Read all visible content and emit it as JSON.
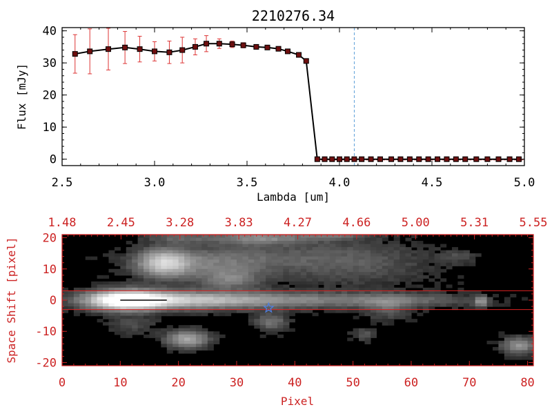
{
  "colors": {
    "axis_black": "#000000",
    "axis_red": "#cc2222",
    "errorbar_red": "#dd3333",
    "marker_fill": "#6e0f0f",
    "vline_blue": "#5a9fd8",
    "star_blue": "#4f7fe0",
    "overlay_red": "#dd2222"
  },
  "chart_data": [
    {
      "type": "line",
      "title": "2210276.34",
      "xlabel": "Lambda [um]",
      "ylabel": "Flux [mJy]",
      "xlim": [
        2.5,
        5.0
      ],
      "ylim": [
        -2,
        41
      ],
      "x_ticks": [
        "2.5",
        "3.0",
        "3.5",
        "4.0",
        "4.5",
        "5.0"
      ],
      "y_ticks": [
        "0",
        "10",
        "20",
        "30",
        "40"
      ],
      "vertical_line_x": 4.08,
      "series": [
        {
          "name": "flux",
          "x": [
            2.57,
            2.65,
            2.75,
            2.84,
            2.92,
            3.0,
            3.08,
            3.15,
            3.22,
            3.28,
            3.35,
            3.42,
            3.48,
            3.55,
            3.61,
            3.67,
            3.72,
            3.78,
            3.82,
            3.88,
            3.92,
            3.96,
            4.0,
            4.04,
            4.08,
            4.12,
            4.17,
            4.22,
            4.28,
            4.33,
            4.38,
            4.43,
            4.48,
            4.53,
            4.58,
            4.63,
            4.68,
            4.74,
            4.8,
            4.86,
            4.92,
            4.97
          ],
          "y": [
            32.8,
            33.6,
            34.3,
            34.8,
            34.3,
            33.6,
            33.3,
            34.0,
            35.0,
            36.0,
            36.0,
            35.8,
            35.5,
            35.0,
            34.8,
            34.4,
            33.6,
            32.5,
            30.6,
            0,
            0,
            0,
            0,
            0,
            0,
            0,
            0,
            0,
            0,
            0,
            0,
            0,
            0,
            0,
            0,
            0,
            0,
            0,
            0,
            0,
            0,
            0
          ],
          "yerr": [
            6.0,
            7.0,
            6.5,
            5.0,
            4.0,
            3.0,
            3.5,
            4.0,
            2.5,
            2.5,
            1.5,
            1.0,
            0.8,
            0.7,
            0.6,
            0.6,
            0.6,
            0.6,
            0.6,
            0,
            0,
            0,
            0,
            0,
            0,
            0,
            0,
            0,
            0,
            0,
            0,
            0,
            0,
            0,
            0,
            0,
            0,
            0,
            0,
            0,
            0,
            0
          ]
        }
      ]
    },
    {
      "type": "heatmap",
      "xlabel": "Pixel",
      "ylabel": "Space Shift [pixel]",
      "xlim": [
        0,
        81
      ],
      "ylim": [
        -21,
        21
      ],
      "x_ticks": [
        "0",
        "10",
        "20",
        "30",
        "40",
        "50",
        "60",
        "70",
        "80"
      ],
      "y_ticks": [
        "-20",
        "-10",
        "0",
        "10",
        "20"
      ],
      "top_axis_ticks": [
        "1.48",
        "2.45",
        "3.28",
        "3.83",
        "4.27",
        "4.66",
        "5.00",
        "5.31",
        "5.55"
      ],
      "extraction_lines_y": [
        3,
        -3
      ],
      "marker_star": {
        "x": 35.5,
        "y": -2.5
      },
      "blobs": [
        {
          "x": 11,
          "y": 0,
          "sx": 4.5,
          "sy": 2.2,
          "a": 1.0
        },
        {
          "x": 20,
          "y": 0,
          "sx": 10,
          "sy": 2.0,
          "a": 0.55
        },
        {
          "x": 40,
          "y": 0,
          "sx": 14,
          "sy": 1.8,
          "a": 0.32
        },
        {
          "x": 60,
          "y": 0,
          "sx": 8,
          "sy": 1.5,
          "a": 0.18
        },
        {
          "x": 17.5,
          "y": 12,
          "sx": 3,
          "sy": 3,
          "a": 0.6
        },
        {
          "x": 24,
          "y": 11,
          "sx": 8,
          "sy": 3.5,
          "a": 0.25
        },
        {
          "x": 29,
          "y": 6.5,
          "sx": 3.5,
          "sy": 2.2,
          "a": 0.28
        },
        {
          "x": 50,
          "y": 12,
          "sx": 9,
          "sy": 5,
          "a": 0.2
        },
        {
          "x": 32,
          "y": 14,
          "sx": 10,
          "sy": 3,
          "a": 0.15
        },
        {
          "x": 34,
          "y": 20,
          "sx": 6,
          "sy": 1.5,
          "a": 0.4
        },
        {
          "x": 20,
          "y": 20,
          "sx": 4,
          "sy": 1.2,
          "a": 0.2
        },
        {
          "x": 47,
          "y": 21,
          "sx": 4,
          "sy": 1.2,
          "a": 0.25
        },
        {
          "x": 21.5,
          "y": -12.5,
          "sx": 2.5,
          "sy": 2.0,
          "a": 0.55
        },
        {
          "x": 36,
          "y": -7,
          "sx": 2,
          "sy": 2,
          "a": 0.3
        },
        {
          "x": 78.5,
          "y": -14.5,
          "sx": 2,
          "sy": 1.8,
          "a": 0.45
        },
        {
          "x": 72,
          "y": -0.5,
          "sx": 0.8,
          "sy": 1.2,
          "a": 0.45
        },
        {
          "x": 12,
          "y": -8,
          "sx": 3,
          "sy": 2,
          "a": 0.15
        },
        {
          "x": 52,
          "y": -11,
          "sx": 1.5,
          "sy": 1.5,
          "a": 0.18
        },
        {
          "x": 68,
          "y": 14,
          "sx": 2,
          "sy": 1.5,
          "a": 0.15
        },
        {
          "x": 56,
          "y": -3,
          "sx": 2.5,
          "sy": 2.5,
          "a": 0.2
        }
      ]
    }
  ]
}
